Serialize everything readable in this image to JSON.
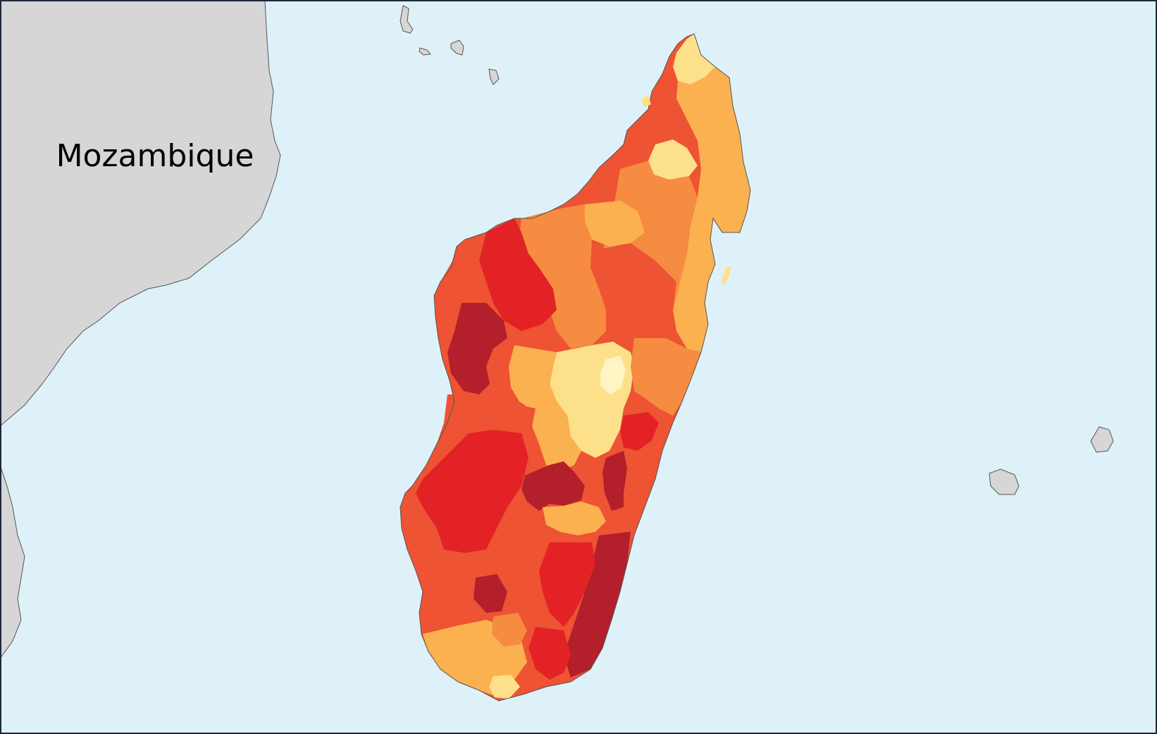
{
  "map": {
    "labels": {
      "neighbor": "Mozambique"
    },
    "colors": {
      "ocean": "#dff1f8",
      "land_other": "#d6d6d6",
      "coast_stroke": "#555555",
      "frame": "#1e2a3a",
      "choropleth": [
        "#fff4c4",
        "#fde08a",
        "#fbb150",
        "#f58c42",
        "#ee5333",
        "#e32226",
        "#b31f2a"
      ]
    },
    "legend": {
      "shown": false
    }
  }
}
